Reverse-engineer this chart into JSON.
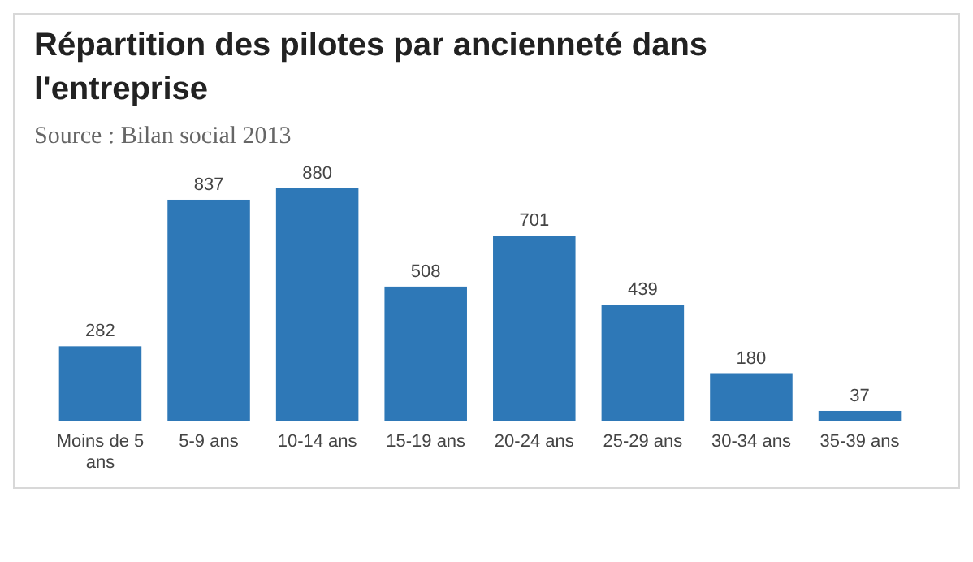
{
  "chart_data": {
    "type": "bar",
    "title": "Répartition des pilotes par ancienneté dans l'entreprise",
    "subtitle": "Source : Bilan social 2013",
    "categories": [
      "Moins de 5 ans",
      "5-9 ans",
      "10-14 ans",
      "15-19 ans",
      "20-24 ans",
      "25-29 ans",
      "30-34 ans",
      "35-39 ans"
    ],
    "values": [
      282,
      837,
      880,
      508,
      701,
      439,
      180,
      37
    ],
    "color": "#2e78b7",
    "data_labels": true
  }
}
